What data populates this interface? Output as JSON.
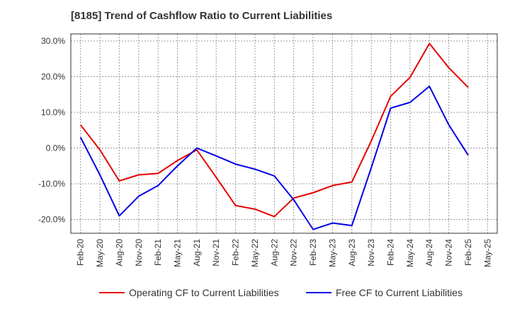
{
  "chart_data": {
    "type": "line",
    "title": "[8185]  Trend of Cashflow Ratio to Current Liabilities",
    "x_ticks": [
      "Feb-20",
      "May-20",
      "Aug-20",
      "Nov-20",
      "Feb-21",
      "May-21",
      "Aug-21",
      "Nov-21",
      "Feb-22",
      "May-22",
      "Aug-22",
      "Nov-22",
      "Feb-23",
      "May-23",
      "Aug-23",
      "Nov-23",
      "Feb-24",
      "May-24",
      "Aug-24",
      "Nov-24",
      "Feb-25",
      "May-25"
    ],
    "y_ticks": [
      "30.0%",
      "20.0%",
      "10.0%",
      "0.0%",
      "-10.0%",
      "-20.0%"
    ],
    "ylim": [
      -24,
      30
    ],
    "grid": true,
    "legend_position": "bottom",
    "series": [
      {
        "name": "Operating CF to Current Liabilities",
        "color": "#e60000",
        "x": [
          "Feb-20",
          "May-20",
          "Aug-20",
          "Nov-20",
          "Feb-21",
          "May-21",
          "Aug-21",
          "Nov-21",
          "Feb-22",
          "May-22",
          "Aug-22",
          "Nov-22",
          "Feb-23",
          "May-23",
          "Aug-23",
          "Nov-23",
          "Feb-24",
          "May-24",
          "Aug-24",
          "Nov-24",
          "Feb-25"
        ],
        "values": [
          6.5,
          -0.5,
          -9.2,
          -7.5,
          -7.1,
          -3.5,
          -0.5,
          -8.2,
          -16.1,
          -17.1,
          -19.2,
          -14.0,
          -12.5,
          -10.5,
          -9.5,
          2.0,
          14.5,
          19.8,
          29.3,
          22.5,
          17.0
        ]
      },
      {
        "name": "Free CF to Current Liabilities",
        "color": "#0000e6",
        "x": [
          "Feb-20",
          "May-20",
          "Aug-20",
          "Nov-20",
          "Feb-21",
          "May-21",
          "Aug-21",
          "Nov-21",
          "Feb-22",
          "May-22",
          "Aug-22",
          "Nov-22",
          "Feb-23",
          "May-23",
          "Aug-23",
          "Nov-23",
          "Feb-24",
          "May-24",
          "Aug-24",
          "Nov-24",
          "Feb-25"
        ],
        "values": [
          3.0,
          -7.5,
          -19.0,
          -13.5,
          -10.5,
          -5.0,
          0.0,
          -2.2,
          -4.5,
          -5.9,
          -7.8,
          -14.5,
          -22.8,
          -21.0,
          -21.7,
          -5.5,
          11.2,
          12.8,
          17.3,
          6.5,
          -2.0
        ]
      }
    ]
  }
}
